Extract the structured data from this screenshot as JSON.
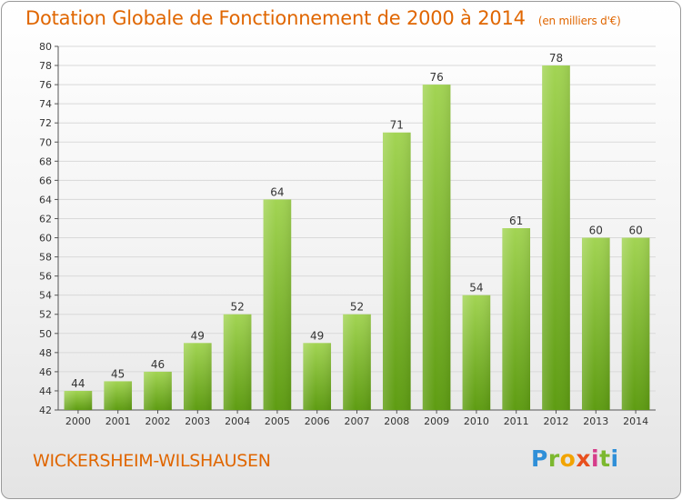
{
  "header": {
    "title": "Dotation Globale de Fonctionnement de 2000 à 2014",
    "unit": "(en milliers d'€)"
  },
  "footer": {
    "commune": "WICKERSHEIM-WILSHAUSEN",
    "logo_letters": [
      "P",
      "r",
      "o",
      "x",
      "i",
      "t",
      "i"
    ]
  },
  "colors": {
    "accent": "#e06600",
    "bar_light": "#9fd14e",
    "bar_dark": "#5f9e14",
    "grid": "#d9d9d9"
  },
  "chart_data": {
    "type": "bar",
    "title": "Dotation Globale de Fonctionnement de 2000 à 2014",
    "subtitle": "(en milliers d'€)",
    "xlabel": "",
    "ylabel": "",
    "categories": [
      "2000",
      "2001",
      "2002",
      "2003",
      "2004",
      "2005",
      "2006",
      "2007",
      "2008",
      "2009",
      "2010",
      "2011",
      "2012",
      "2013",
      "2014"
    ],
    "values": [
      44,
      45,
      46,
      49,
      52,
      64,
      49,
      52,
      71,
      76,
      54,
      61,
      78,
      60,
      60
    ],
    "ylim": [
      42,
      80
    ],
    "yticks": [
      42,
      44,
      46,
      48,
      50,
      52,
      54,
      56,
      58,
      60,
      62,
      64,
      66,
      68,
      70,
      72,
      74,
      76,
      78,
      80
    ],
    "grid": true,
    "legend": "none",
    "data_labels": true
  }
}
